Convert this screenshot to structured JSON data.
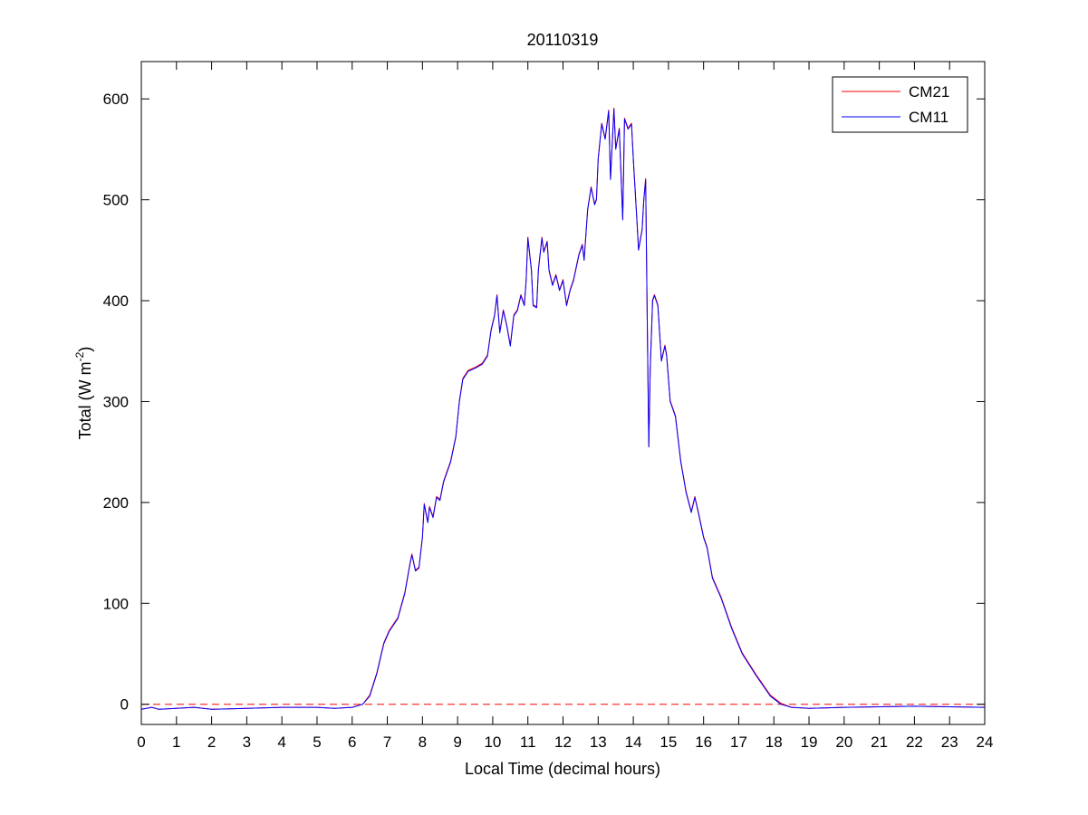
{
  "chart_data": {
    "type": "line",
    "title": "20110319",
    "xlabel": "Local Time (decimal hours)",
    "ylabel_main": "Total (W m",
    "ylabel_sup": "-2",
    "ylabel_close": ")",
    "xlim": [
      0,
      24
    ],
    "ylim": [
      -20,
      637
    ],
    "xticks": [
      0,
      1,
      2,
      3,
      4,
      5,
      6,
      7,
      8,
      9,
      10,
      11,
      12,
      13,
      14,
      15,
      16,
      17,
      18,
      19,
      20,
      21,
      22,
      23,
      24
    ],
    "yticks": [
      0,
      100,
      200,
      300,
      400,
      500,
      600
    ],
    "grid": false,
    "legend_position": "top-right",
    "reference_line": {
      "y": 0,
      "style": "dashed",
      "color": "#ff0000"
    },
    "x": [
      0,
      0.3,
      0.5,
      1,
      1.5,
      2,
      3,
      4,
      5,
      5.5,
      6,
      6.3,
      6.5,
      6.7,
      6.9,
      7.05,
      7.3,
      7.5,
      7.65,
      7.7,
      7.8,
      7.9,
      8,
      8.05,
      8.15,
      8.2,
      8.3,
      8.4,
      8.5,
      8.6,
      8.8,
      8.95,
      9.05,
      9.15,
      9.3,
      9.5,
      9.7,
      9.85,
      9.95,
      10.05,
      10.12,
      10.2,
      10.3,
      10.4,
      10.5,
      10.6,
      10.7,
      10.8,
      10.9,
      10.95,
      11,
      11.1,
      11.15,
      11.25,
      11.3,
      11.4,
      11.45,
      11.55,
      11.6,
      11.7,
      11.8,
      11.9,
      12,
      12.1,
      12.2,
      12.3,
      12.45,
      12.55,
      12.6,
      12.7,
      12.8,
      12.9,
      12.95,
      13,
      13.1,
      13.2,
      13.3,
      13.35,
      13.45,
      13.5,
      13.6,
      13.7,
      13.75,
      13.85,
      13.95,
      14,
      14.1,
      14.15,
      14.25,
      14.3,
      14.35,
      14.4,
      14.44,
      14.48,
      14.55,
      14.6,
      14.7,
      14.8,
      14.9,
      14.95,
      15.05,
      15.2,
      15.35,
      15.5,
      15.65,
      15.75,
      15.85,
      16,
      16.1,
      16.25,
      16.5,
      16.8,
      17.1,
      17.5,
      17.9,
      18.2,
      18.5,
      19,
      20,
      22,
      24
    ],
    "series": [
      {
        "name": "CM21",
        "color": "#ff0000",
        "values": [
          -5,
          -3,
          -5,
          -4,
          -3,
          -5,
          -4,
          -3,
          -3,
          -4,
          -3,
          0,
          9,
          31,
          61,
          73,
          86,
          111,
          141,
          149,
          133,
          136,
          166,
          199,
          181,
          196,
          186,
          206,
          203,
          221,
          241,
          266,
          301,
          323,
          331,
          334,
          338,
          346,
          371,
          386,
          406,
          369,
          391,
          376,
          356,
          386,
          391,
          406,
          396,
          421,
          463,
          431,
          396,
          394,
          431,
          463,
          449,
          459,
          431,
          416,
          426,
          411,
          421,
          396,
          411,
          421,
          446,
          456,
          441,
          491,
          513,
          496,
          501,
          541,
          576,
          561,
          589,
          521,
          591,
          551,
          571,
          481,
          581,
          571,
          576,
          541,
          481,
          451,
          471,
          501,
          521,
          371,
          256,
          331,
          401,
          406,
          396,
          341,
          356,
          346,
          301,
          286,
          241,
          211,
          191,
          206,
          191,
          166,
          156,
          126,
          106,
          76,
          51,
          29,
          9,
          1,
          -3,
          -4,
          -3,
          -2,
          -3
        ]
      },
      {
        "name": "CM11",
        "color": "#0000ff",
        "values": [
          -5,
          -3,
          -5,
          -4,
          -3,
          -5,
          -4,
          -3,
          -3,
          -4,
          -3,
          0,
          8,
          30,
          60,
          72,
          85,
          110,
          140,
          148,
          132,
          135,
          165,
          198,
          180,
          195,
          185,
          205,
          202,
          220,
          240,
          265,
          300,
          322,
          330,
          333,
          337,
          345,
          370,
          385,
          405,
          368,
          390,
          375,
          355,
          385,
          390,
          405,
          395,
          420,
          462,
          430,
          395,
          393,
          430,
          462,
          448,
          458,
          430,
          415,
          425,
          410,
          420,
          395,
          410,
          420,
          445,
          455,
          440,
          490,
          512,
          495,
          500,
          540,
          575,
          560,
          588,
          520,
          590,
          550,
          570,
          480,
          580,
          570,
          575,
          540,
          480,
          450,
          470,
          500,
          520,
          370,
          255,
          330,
          400,
          405,
          395,
          340,
          355,
          345,
          300,
          285,
          240,
          210,
          190,
          205,
          190,
          165,
          155,
          125,
          105,
          75,
          50,
          28,
          8,
          0,
          -3,
          -4,
          -3,
          -2,
          -3
        ]
      }
    ]
  }
}
